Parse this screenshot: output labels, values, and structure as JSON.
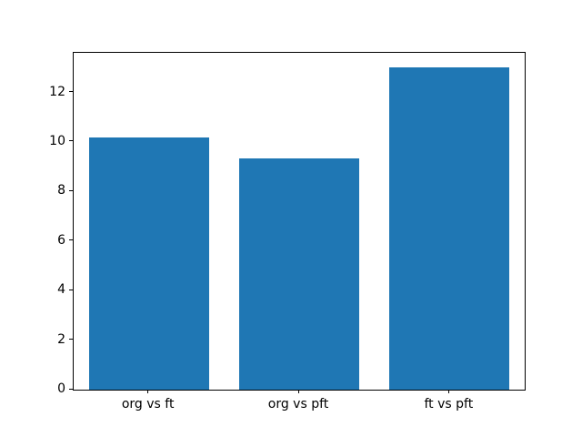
{
  "chart_data": {
    "type": "bar",
    "categories": [
      "org vs ft",
      "org vs pft",
      "ft vs pft"
    ],
    "values": [
      10.2,
      9.35,
      13.0
    ],
    "title": "",
    "xlabel": "",
    "ylabel": "",
    "ylim": [
      0,
      13.6
    ],
    "yticks": [
      0,
      2,
      4,
      6,
      8,
      10,
      12
    ],
    "bar_width_fraction": 0.8,
    "bar_color": "#1f77b4",
    "background_color": "#ffffff",
    "spine_color": "#000000",
    "grid": false,
    "legend_position": "none"
  }
}
